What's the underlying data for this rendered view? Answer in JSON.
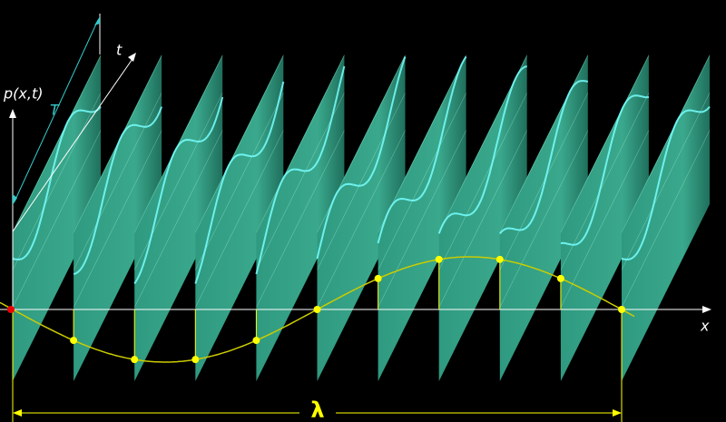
{
  "labels": {
    "pressure": "p(x,t)",
    "time": "t",
    "period": "T",
    "position": "x",
    "wavelength": "λ"
  }
}
